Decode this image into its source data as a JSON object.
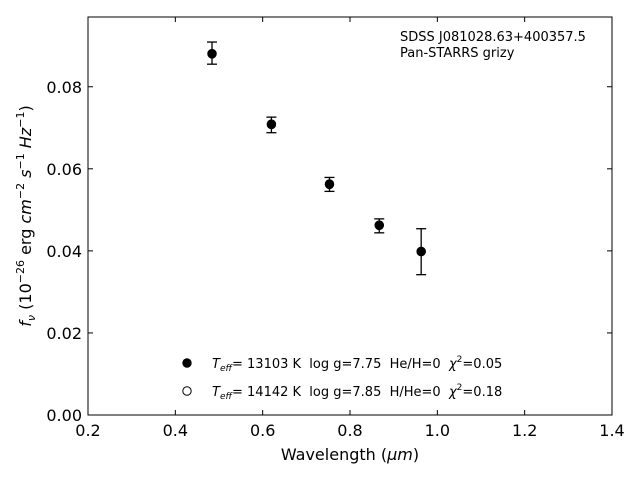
{
  "chart_data": {
    "type": "scatter",
    "title": "",
    "annotation": {
      "line1": "SDSS J081028.63+400357.5",
      "line2": "Pan-STARRS grizy"
    },
    "xlabel": {
      "prefix": "Wavelength (",
      "unit": "μm",
      "suffix": ")"
    },
    "ylabel": {
      "f": "f",
      "nu": "ν",
      "open": " (10",
      "exp": "−26",
      "erg": " erg ",
      "cm": "cm",
      "cm_exp": "−2",
      "s": " s",
      "s_exp": "−1",
      "hz": " Hz",
      "hz_exp": "−1",
      "close": ")"
    },
    "xlim": [
      0.2,
      1.4
    ],
    "ylim": [
      0.0,
      0.097
    ],
    "xticks": [
      "0.2",
      "0.4",
      "0.6",
      "0.8",
      "1.0",
      "1.2",
      "1.4"
    ],
    "yticks": [
      "0.00",
      "0.02",
      "0.04",
      "0.06",
      "0.08"
    ],
    "grid": false,
    "legend_placement": "lower-center",
    "series": [
      {
        "kind": "observed-with-errors",
        "marker": "filled-circle",
        "color": "#000000",
        "x": [
          0.484,
          0.62,
          0.753,
          0.867,
          0.963
        ],
        "y": [
          0.0882,
          0.0707,
          0.0562,
          0.0461,
          0.0398
        ],
        "yerr": [
          0.0027,
          0.0019,
          0.0017,
          0.0017,
          0.0056
        ]
      },
      {
        "kind": "model-1",
        "marker": "filled-circle",
        "color": "#000000",
        "x": [
          0.484,
          0.62,
          0.753,
          0.867,
          0.963
        ],
        "y": [
          0.088,
          0.0709,
          0.0563,
          0.0463,
          0.0398
        ]
      },
      {
        "kind": "model-2",
        "marker": "open-circle",
        "color": "#000000",
        "x": [
          0.484,
          0.62,
          0.753,
          0.867,
          0.963
        ],
        "y": [
          0.0881,
          0.0708,
          0.0562,
          0.0462,
          0.0399
        ]
      }
    ],
    "legend": [
      {
        "marker": "filled-circle",
        "t": "T",
        "t_sub": "eff",
        "text": "= 13103 K  log g=7.75  He/H=0  ",
        "chi": "χ",
        "chi_exp": "2",
        "chi_val": "=0.05"
      },
      {
        "marker": "open-circle",
        "t": "T",
        "t_sub": "eff",
        "text": "= 14142 K  log g=7.85  H/He=0  ",
        "chi": "χ",
        "chi_exp": "2",
        "chi_val": "=0.18"
      }
    ]
  }
}
